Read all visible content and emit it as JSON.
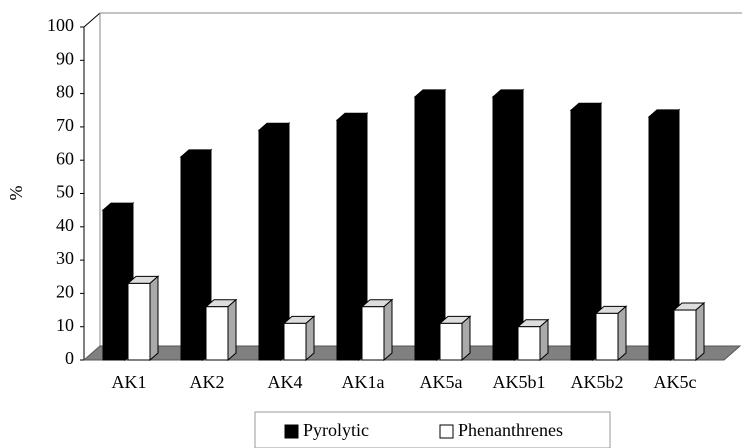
{
  "chart_data": {
    "type": "bar3d",
    "y_label": "%",
    "categories": [
      "AK1",
      "AK2",
      "AK4",
      "AK1a",
      "AK5a",
      "AK5b1",
      "AK5b2",
      "AK5c"
    ],
    "series": [
      {
        "name": "Pyrolytic",
        "color": "#000000",
        "values": [
          45,
          61,
          69,
          72,
          79,
          79,
          75,
          73
        ]
      },
      {
        "name": "Phenanthrenes",
        "color": "#ffffff",
        "values": [
          23,
          16,
          11,
          16,
          11,
          10,
          14,
          15
        ]
      }
    ],
    "ylim": [
      0,
      100
    ],
    "yticks": [
      0,
      10,
      20,
      30,
      40,
      50,
      60,
      70,
      80,
      90,
      100
    ],
    "legend": "bottom"
  }
}
